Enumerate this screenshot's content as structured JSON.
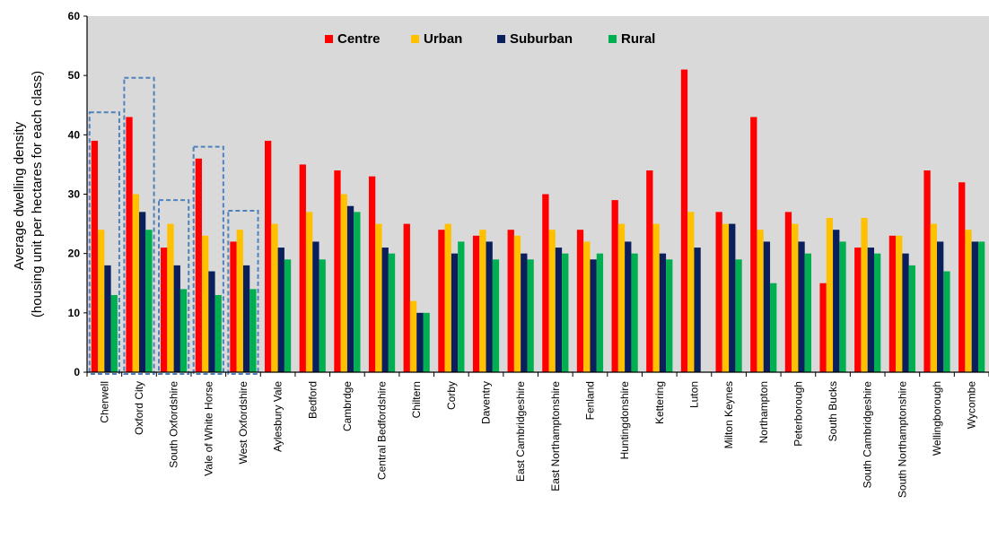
{
  "chart_data": {
    "type": "bar",
    "ylabel_line1": "Average dwelling density",
    "ylabel_line2": "(housing unit per hectares for each class)",
    "ylim": [
      0,
      60
    ],
    "yticks": [
      "0",
      "10",
      "20",
      "30",
      "40",
      "50",
      "60"
    ],
    "grid": false,
    "legend_position": "top-center",
    "categories": [
      "Cherwell",
      "Oxford City",
      "South Oxfordshire",
      "Vale of White Horse",
      "West Oxfordshire",
      "Aylesbury Vale",
      "Bedford",
      "Cambrdge",
      "Central Bedfordshire",
      "Chiltern",
      "Corby",
      "Daventry",
      "East Cambridgeshire",
      "East Northamptonshire",
      "Fenland",
      "Huntingdonshire",
      "Kettering",
      "Luton",
      "Milton Keynes",
      "Northampton",
      "Peterborough",
      "South Bucks",
      "South Cambridgeshire",
      "South Northamptonshire",
      "Wellingborough",
      "Wycombe"
    ],
    "series": [
      {
        "name": "Centre",
        "color": "#ff0000",
        "values": [
          39,
          43,
          21,
          36,
          22,
          39,
          35,
          34,
          33,
          25,
          24,
          23,
          24,
          30,
          24,
          29,
          34,
          51,
          27,
          43,
          27,
          15,
          21,
          23,
          34,
          32
        ]
      },
      {
        "name": "Urban",
        "color": "#ffc000",
        "values": [
          24,
          30,
          25,
          23,
          24,
          25,
          27,
          30,
          25,
          12,
          25,
          24,
          23,
          24,
          22,
          25,
          25,
          27,
          25,
          24,
          25,
          26,
          26,
          23,
          25,
          24
        ]
      },
      {
        "name": "Suburban",
        "color": "#0b1f5c",
        "values": [
          18,
          27,
          18,
          17,
          18,
          21,
          22,
          28,
          21,
          10,
          20,
          22,
          20,
          21,
          19,
          22,
          20,
          21,
          25,
          22,
          22,
          24,
          21,
          20,
          22,
          22
        ]
      },
      {
        "name": "Rural",
        "color": "#00b050",
        "values": [
          13,
          24,
          14,
          13,
          14,
          19,
          19,
          27,
          20,
          10,
          22,
          19,
          19,
          20,
          20,
          20,
          19,
          null,
          19,
          15,
          20,
          22,
          20,
          18,
          17,
          22
        ]
      }
    ],
    "highlighted_groups": [
      "Cherwell",
      "Oxford City",
      "South Oxfordshire",
      "Vale of White Horse",
      "West Oxfordshire"
    ],
    "highlight_box_tops": [
      43.8,
      49.6,
      29.0,
      38.0,
      27.2
    ],
    "colors": {
      "plot_background": "#d9d9d9",
      "highlight_box": "#4f81bd"
    }
  }
}
